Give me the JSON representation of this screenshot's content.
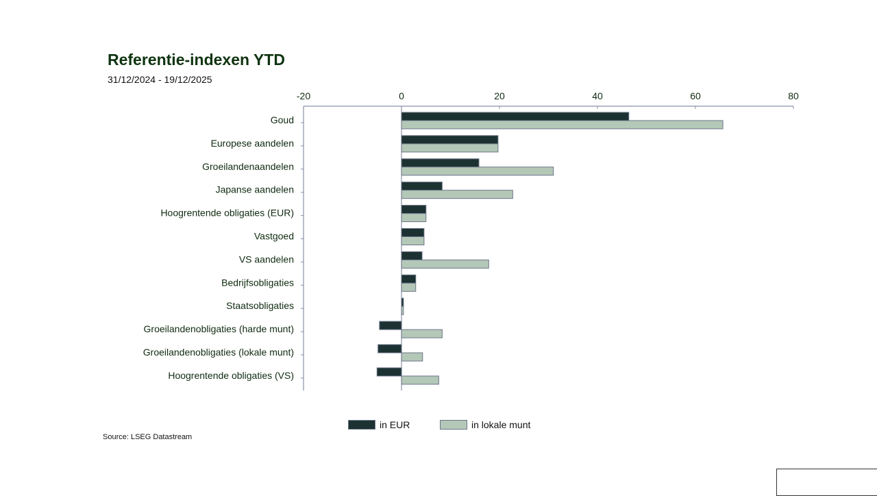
{
  "chart_data": {
    "type": "bar",
    "orientation": "horizontal",
    "title": "Referentie-indexen YTD",
    "subtitle": "31/12/2024 - 19/12/2025",
    "xlim": [
      -20,
      80
    ],
    "xticks": [
      -20,
      0,
      20,
      40,
      60,
      80
    ],
    "categories": [
      "Goud",
      "Europese aandelen",
      "Groeilandenaandelen",
      "Japanse aandelen",
      "Hoogrentende obligaties (EUR)",
      "Vastgoed",
      "VS aandelen",
      "Bedrijfsobligaties",
      "Staatsobligaties",
      "Groeilandenobligaties (harde munt)",
      "Groeilandenobligaties (lokale munt)",
      "Hoogrentende obligaties (VS)"
    ],
    "series": [
      {
        "name": "in EUR",
        "color": "#1c3232",
        "values": [
          46.4,
          19.7,
          15.8,
          8.3,
          5.0,
          4.6,
          4.2,
          2.9,
          0.4,
          -4.5,
          -4.8,
          -5.0
        ]
      },
      {
        "name": "in lokale munt",
        "color": "#b4c8b8",
        "values": [
          65.6,
          19.7,
          31.0,
          22.7,
          5.0,
          4.6,
          17.8,
          2.9,
          0.4,
          8.3,
          4.3,
          7.6
        ]
      }
    ],
    "legend_position": "bottom",
    "source": "Source: LSEG Datastream"
  }
}
